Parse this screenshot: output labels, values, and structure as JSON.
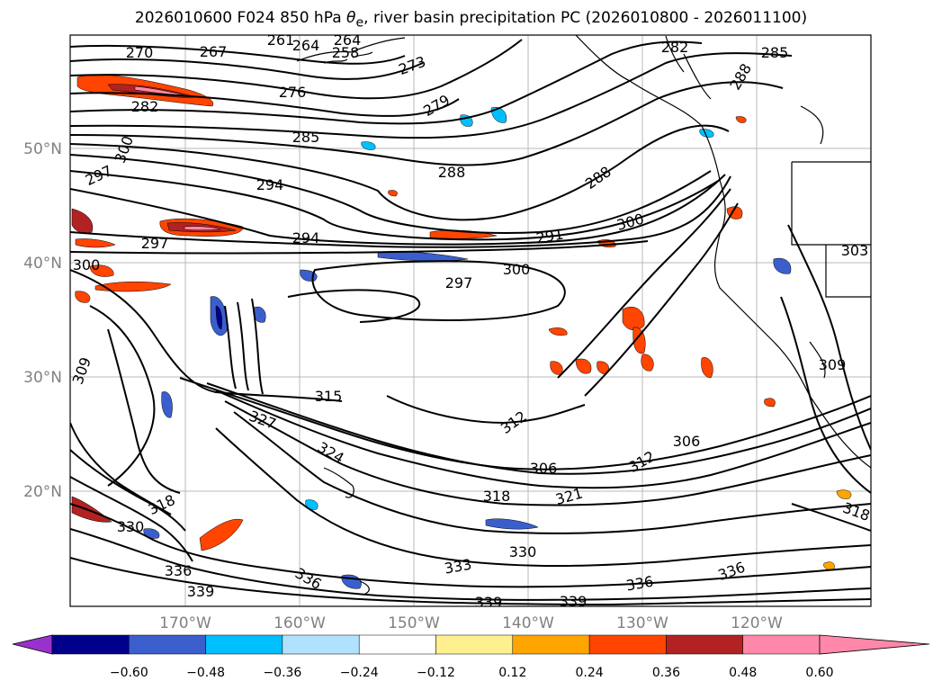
{
  "title_pre": "2026010600 F024 850 hPa ",
  "title_sym": "θ",
  "title_sub": "e",
  "title_post": ", river basin precipitation PC (2026010800 - 2026011100)",
  "lat_ticks": [
    "50°N",
    "40°N",
    "30°N",
    "20°N"
  ],
  "lon_ticks": [
    "170°W",
    "160°W",
    "150°W",
    "140°W",
    "130°W",
    "120°W"
  ],
  "colorbar": {
    "colors": [
      "#9932cc",
      "#00008b",
      "#3a5fcd",
      "#00bfff",
      "#b0e2ff",
      "#ffffff",
      "#fff08f",
      "#ffa500",
      "#ff4500",
      "#b22222",
      "#ff88aa"
    ],
    "labels": [
      "−0.60",
      "−0.48",
      "−0.36",
      "−0.24",
      "−0.12",
      "0.12",
      "0.24",
      "0.36",
      "0.48",
      "0.60"
    ]
  },
  "contour_labels": [
    "270",
    "267",
    "264",
    "261",
    "258",
    "264",
    "273",
    "276",
    "279",
    "282",
    "282",
    "285",
    "285",
    "288",
    "288",
    "291",
    "294",
    "294",
    "297",
    "297",
    "297",
    "300",
    "300",
    "300",
    "300",
    "303",
    "306",
    "306",
    "309",
    "309",
    "312",
    "312",
    "315",
    "318",
    "318",
    "318",
    "321",
    "324",
    "327",
    "330",
    "330",
    "333",
    "336",
    "336",
    "336",
    "336",
    "339",
    "339",
    "339",
    "288"
  ]
}
